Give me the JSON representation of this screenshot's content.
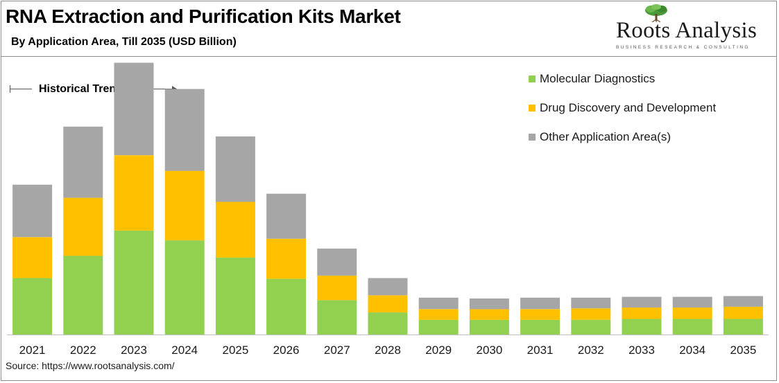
{
  "header": {
    "title": "RNA Extraction and Purification Kits Market",
    "subtitle": "By Application Area, Till 2035 (USD Billion)"
  },
  "logo": {
    "name": "Roots Analysis",
    "tagline": "BUSINESS RESEARCH & CONSULTING",
    "icon": "tree-icon"
  },
  "annotation": {
    "historical_label": "Historical Trends"
  },
  "footer": {
    "source": "Source: https://www.rootsanalysis.com/"
  },
  "colors": {
    "molecular_diagnostics": "#92d050",
    "drug_discovery": "#ffc000",
    "other": "#a6a6a6",
    "frame": "#8c8c8c"
  },
  "chart_data": {
    "type": "bar",
    "stacked": true,
    "title": "RNA Extraction and Purification Kits Market",
    "subtitle": "By Application Area, Till 2035 (USD Billion)",
    "xlabel": "",
    "ylabel": "",
    "ylim": [
      0,
      3.3
    ],
    "grid": false,
    "legend_position": "top-right",
    "categories": [
      "2021",
      "2022",
      "2023",
      "2024",
      "2025",
      "2026",
      "2027",
      "2028",
      "2029",
      "2030",
      "2031",
      "2032",
      "2033",
      "2034",
      "2035"
    ],
    "series": [
      {
        "name": "Molecular Diagnostics",
        "color": "#92d050",
        "values": [
          0.69,
          0.96,
          1.27,
          1.15,
          0.94,
          0.68,
          0.42,
          0.27,
          0.18,
          0.18,
          0.18,
          0.18,
          0.19,
          0.19,
          0.19
        ]
      },
      {
        "name": "Drug Discovery and Development",
        "color": "#ffc000",
        "values": [
          0.5,
          0.71,
          0.92,
          0.85,
          0.68,
          0.49,
          0.3,
          0.21,
          0.13,
          0.13,
          0.13,
          0.14,
          0.14,
          0.14,
          0.15
        ]
      },
      {
        "name": "Other Application Area(s)",
        "color": "#a6a6a6",
        "values": [
          0.64,
          0.87,
          1.13,
          1.0,
          0.8,
          0.55,
          0.33,
          0.21,
          0.14,
          0.13,
          0.14,
          0.13,
          0.13,
          0.13,
          0.13
        ]
      }
    ]
  }
}
